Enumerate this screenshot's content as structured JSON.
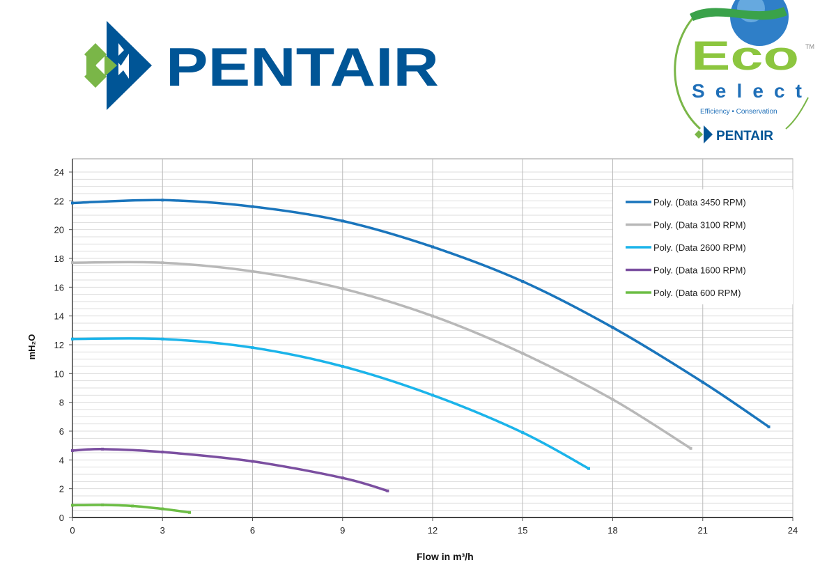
{
  "logos": {
    "main_brand": "PENTAIR",
    "eco": "Eco",
    "tm": "TM",
    "select": "Select",
    "tagline": "Efficiency • Conservation",
    "sub_brand": "PENTAIR"
  },
  "colors": {
    "brand_blue": "#005596",
    "brand_green": "#7ab648"
  },
  "chart_data": {
    "type": "line",
    "title": "",
    "xlabel": "Flow  in m³/h",
    "ylabel": "mH₂O",
    "xlim": [
      0,
      24
    ],
    "ylim": [
      0,
      24
    ],
    "xticks": [
      0,
      3,
      6,
      9,
      12,
      15,
      18,
      21,
      24
    ],
    "yticks": [
      0,
      2,
      4,
      6,
      8,
      10,
      12,
      14,
      16,
      18,
      20,
      22,
      24
    ],
    "grid": true,
    "legend_position": "top-right",
    "series": [
      {
        "name": "Poly. (Data 3450 RPM)",
        "color": "#1a75bc",
        "x": [
          0,
          3,
          6,
          9,
          12,
          15,
          18,
          21,
          23.2
        ],
        "y": [
          21.85,
          22.05,
          21.6,
          20.6,
          18.8,
          16.4,
          13.2,
          9.4,
          6.3
        ]
      },
      {
        "name": "Poly. (Data 3100 RPM)",
        "color": "#b8b8b8",
        "x": [
          0,
          3,
          6,
          9,
          12,
          15,
          18,
          20.6
        ],
        "y": [
          17.7,
          17.7,
          17.1,
          15.9,
          14.0,
          11.4,
          8.2,
          4.8
        ]
      },
      {
        "name": "Poly. (Data 2600 RPM)",
        "color": "#1bb4ea",
        "x": [
          0,
          3,
          6,
          9,
          12,
          15,
          17.2
        ],
        "y": [
          12.4,
          12.4,
          11.8,
          10.5,
          8.5,
          5.9,
          3.4
        ]
      },
      {
        "name": "Poly. (Data 1600 RPM)",
        "color": "#7b4fa0",
        "x": [
          0,
          1,
          3,
          6,
          9,
          10.5
        ],
        "y": [
          4.65,
          4.75,
          4.55,
          3.9,
          2.75,
          1.85
        ]
      },
      {
        "name": "Poly. (Data 600 RPM)",
        "color": "#6cbd45",
        "x": [
          0,
          1,
          2,
          3,
          3.9
        ],
        "y": [
          0.85,
          0.87,
          0.8,
          0.6,
          0.35
        ]
      }
    ]
  }
}
